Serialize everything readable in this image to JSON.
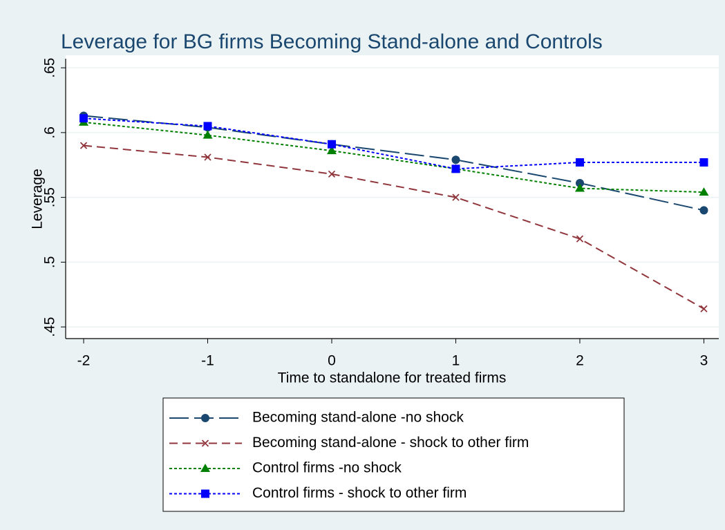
{
  "chart_data": {
    "type": "line",
    "title": "Leverage for BG firms Becoming Stand-alone and Controls",
    "x_label": "Time to standalone for treated firms",
    "y_label": "Leverage",
    "x": [
      -2,
      -1,
      0,
      1,
      2,
      3
    ],
    "xlim": [
      -2.145,
      3.12
    ],
    "xticks": [
      -2,
      -1,
      0,
      1,
      2,
      3
    ],
    "ylim": [
      0.441,
      0.657
    ],
    "yticks": [
      {
        "value": 0.45,
        "label": ".45"
      },
      {
        "value": 0.5,
        "label": ".5"
      },
      {
        "value": 0.55,
        "label": ".55"
      },
      {
        "value": 0.6,
        "label": ".6"
      },
      {
        "value": 0.65,
        "label": ".65"
      }
    ],
    "grid": true,
    "legend": "bottom",
    "series": [
      {
        "name": "Becoming stand-alone -no shock",
        "color": "#1a476f",
        "marker": "circle",
        "dash": "long",
        "values": [
          0.613,
          0.604,
          0.591,
          0.579,
          0.561,
          0.54
        ]
      },
      {
        "name": "Becoming stand-alone - shock to other firm",
        "color": "#90353b",
        "marker": "x",
        "dash": "medium",
        "values": [
          0.59,
          0.581,
          0.568,
          0.55,
          0.518,
          0.464
        ]
      },
      {
        "name": "Control firms -no shock",
        "color": "#008000",
        "marker": "triangle",
        "dash": "short",
        "values": [
          0.608,
          0.598,
          0.586,
          0.572,
          0.557,
          0.554
        ]
      },
      {
        "name": "Control firms - shock to other firm",
        "color": "#0000ff",
        "marker": "square",
        "dash": "short",
        "values": [
          0.611,
          0.605,
          0.591,
          0.572,
          0.577,
          0.577
        ]
      }
    ]
  }
}
